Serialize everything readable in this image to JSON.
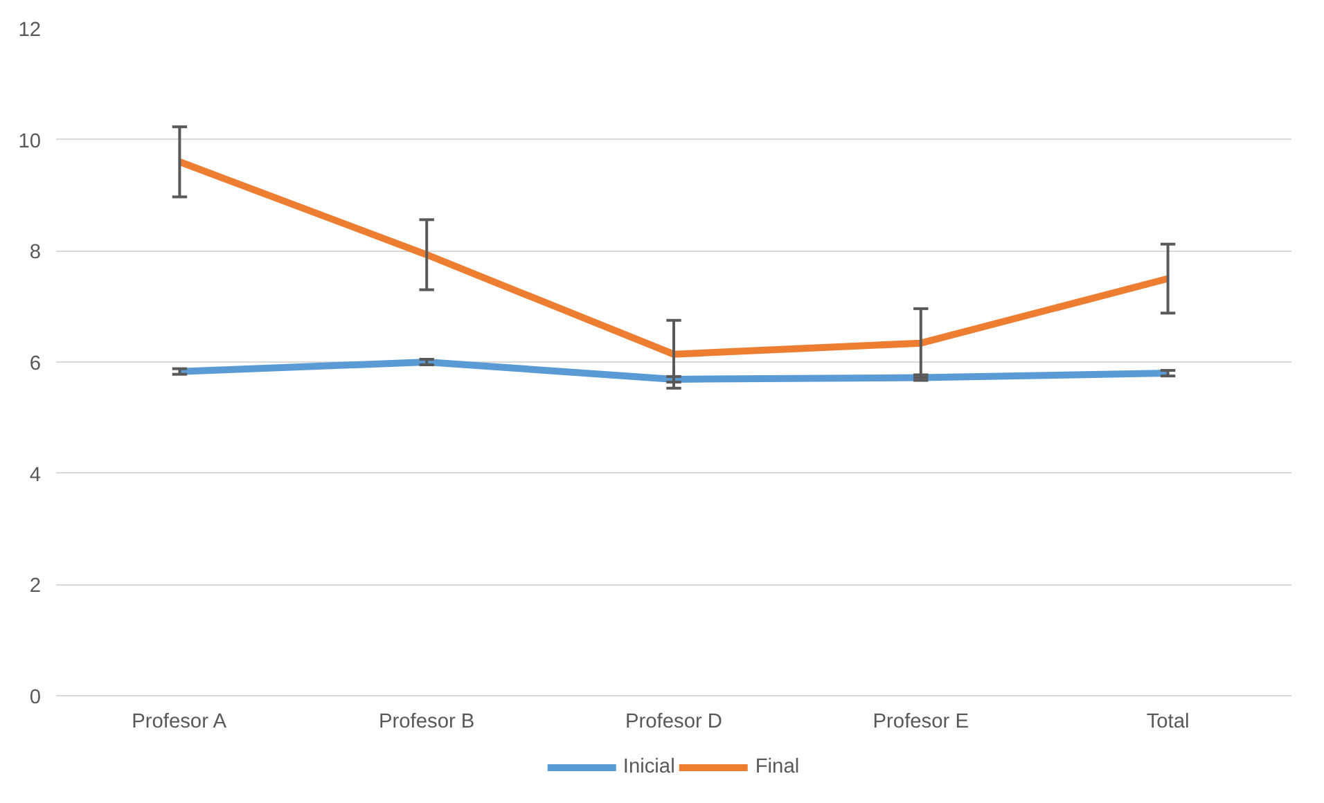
{
  "chart_data": {
    "type": "line",
    "categories": [
      "Profesor A",
      "Profesor B",
      "Profesor D",
      "Profesor E",
      "Total"
    ],
    "series": [
      {
        "name": "Inicial",
        "color": "#5b9bd5",
        "values": [
          5.83,
          6.0,
          5.69,
          5.72,
          5.8
        ],
        "errors": [
          0.05,
          0.05,
          0.05,
          0.05,
          0.05
        ]
      },
      {
        "name": "Final",
        "color": "#ed7d31",
        "values": [
          9.6,
          7.93,
          6.14,
          6.34,
          7.5
        ],
        "errors": [
          0.63,
          0.63,
          0.61,
          0.62,
          0.62
        ]
      }
    ],
    "ylim": [
      0,
      12
    ],
    "yticks": [
      0,
      2,
      4,
      6,
      8,
      10,
      12
    ],
    "grid": "y",
    "legend": "bottom",
    "line_style": "solid"
  }
}
